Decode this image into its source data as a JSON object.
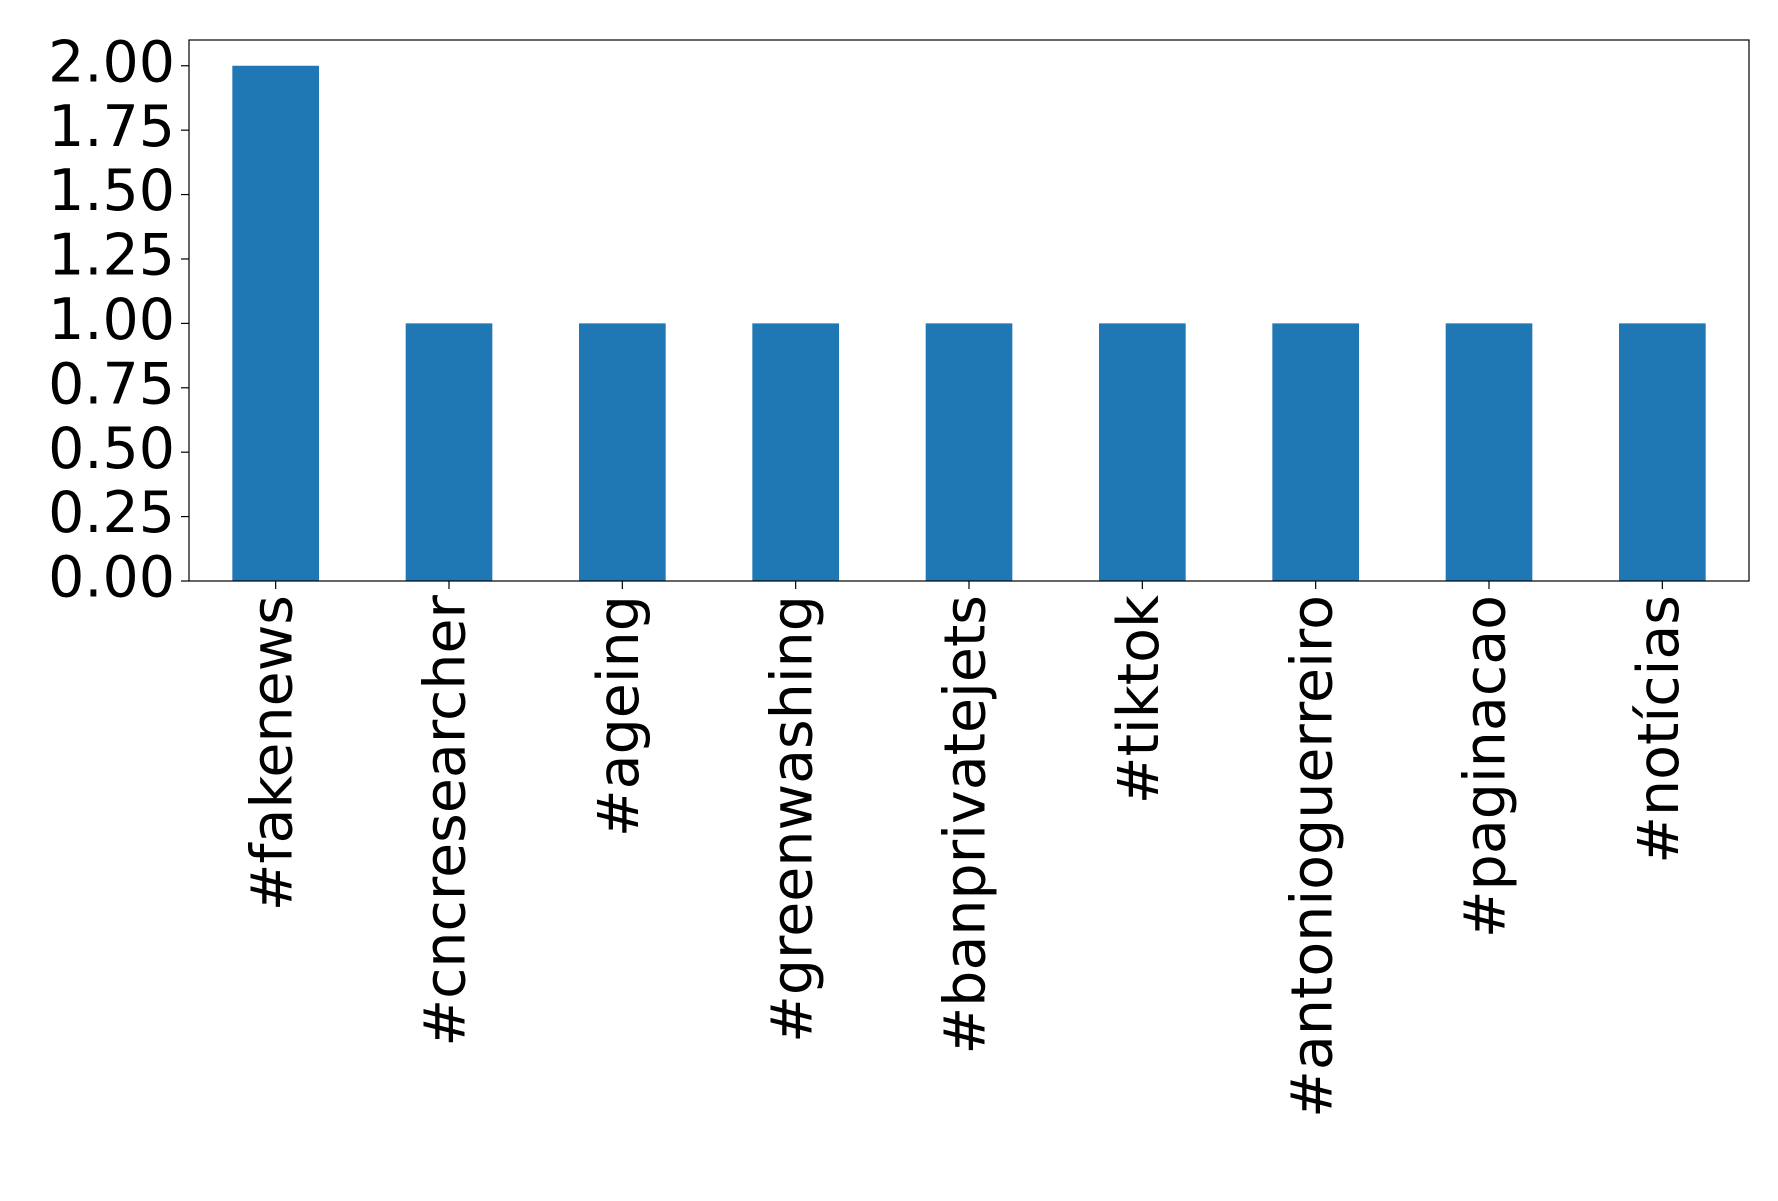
{
  "chart_data": {
    "type": "bar",
    "categories": [
      "#fakenews",
      "#cncresearcher",
      "#ageing",
      "#greenwashing",
      "#banprivatejets",
      "#tiktok",
      "#antonioguerreiro",
      "#paginacao",
      "#notícias"
    ],
    "values": [
      2,
      1,
      1,
      1,
      1,
      1,
      1,
      1,
      1
    ],
    "color": "#1f77b4",
    "ylim": [
      0,
      2.1
    ],
    "yticks": [
      {
        "value": 0,
        "label": "0.00"
      },
      {
        "value": 0.25,
        "label": "0.25"
      },
      {
        "value": 0.5,
        "label": "0.50"
      },
      {
        "value": 0.75,
        "label": "0.75"
      },
      {
        "value": 1,
        "label": "1.00"
      },
      {
        "value": 1.25,
        "label": "1.25"
      },
      {
        "value": 1.5,
        "label": "1.50"
      },
      {
        "value": 1.75,
        "label": "1.75"
      },
      {
        "value": 2,
        "label": "2.00"
      }
    ],
    "grid": false
  }
}
